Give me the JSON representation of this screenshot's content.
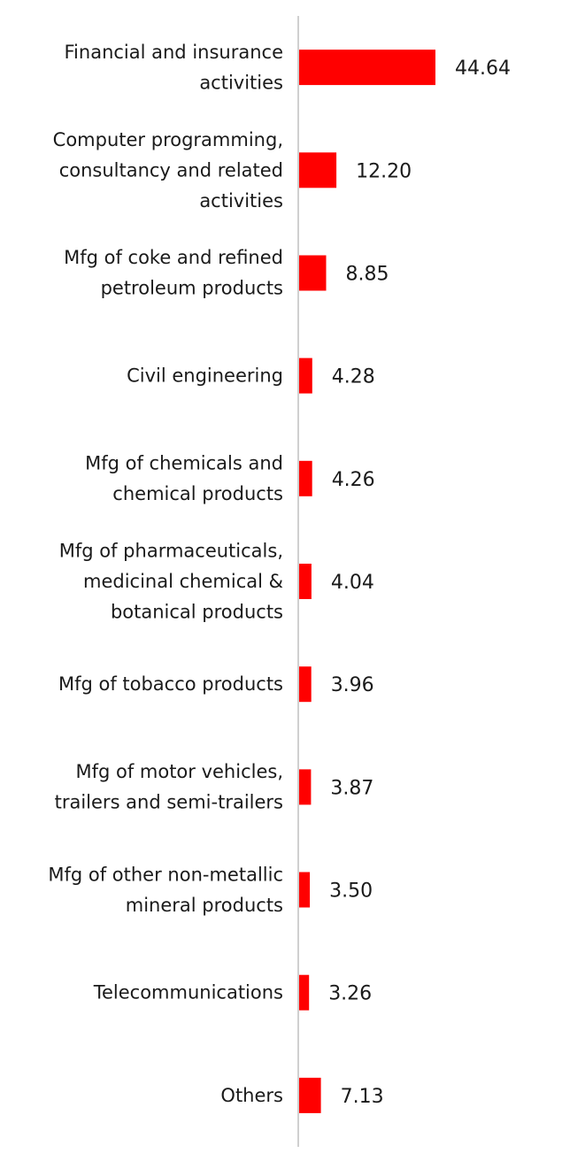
{
  "chart_data": {
    "type": "bar",
    "orientation": "horizontal",
    "categories": [
      [
        "Financial and insurance",
        "activities"
      ],
      [
        "Computer programming,",
        "consultancy and related",
        "activities"
      ],
      [
        "Mfg of coke and refined",
        "petroleum products"
      ],
      [
        "Civil engineering"
      ],
      [
        "Mfg of chemicals and",
        "chemical products"
      ],
      [
        "Mfg of pharmaceuticals,",
        "medicinal chemical &",
        "botanical products"
      ],
      [
        "Mfg of tobacco products"
      ],
      [
        "Mfg of motor vehicles,",
        "trailers and semi-trailers"
      ],
      [
        "Mfg of other non-metallic",
        "mineral products"
      ],
      [
        "Telecommunications"
      ],
      [
        "Others"
      ]
    ],
    "values": [
      44.64,
      12.2,
      8.85,
      4.28,
      4.26,
      4.04,
      3.96,
      3.87,
      3.5,
      3.26,
      7.13
    ],
    "value_labels": [
      "44.64",
      "12.20",
      "8.85",
      "4.28",
      "4.26",
      "4.04",
      "3.96",
      "3.87",
      "3.50",
      "3.26",
      "7.13"
    ],
    "title": "",
    "xlabel": "",
    "ylabel": "",
    "xlim": [
      0,
      50
    ],
    "grid": false,
    "legend": "none",
    "bar_color": "#ff0000",
    "axis_color": "#d0d0d0"
  }
}
